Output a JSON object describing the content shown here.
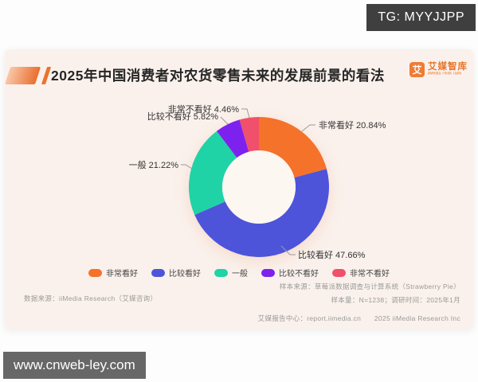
{
  "overlays": {
    "tg_badge": "TG: MYYJJPP",
    "watermark": "www.cnweb-ley.com"
  },
  "header": {
    "title": "2025年中国消费者对农货零售未来的发展前景的看法",
    "logo": {
      "icon_char": "艾",
      "name": "艾媒智库",
      "subtitle": "iiMedia Think Tank"
    }
  },
  "chart_data": {
    "type": "pie",
    "donut": true,
    "title": "2025年中国消费者对农货零售未来的发展前景的看法",
    "categories": [
      "非常看好",
      "比较看好",
      "一般",
      "比较不看好",
      "非常不看好"
    ],
    "values": [
      20.84,
      47.66,
      21.22,
      5.82,
      4.46
    ],
    "unit": "%",
    "colors": [
      "#f5722b",
      "#4d54da",
      "#1fd3a6",
      "#7d22ee",
      "#f0506b"
    ],
    "start_angle_deg": 0,
    "direction": "clockwise",
    "legend_position": "bottom"
  },
  "footnotes": {
    "data_source": "数据来源：iiMedia Research（艾媒咨询）",
    "sample_source": "样本来源：草莓派数据调查与计算系统（Strawberry Pie）",
    "sample_size": "样本量：N=1238；调研时间：2025年1月",
    "report_center": "艾媒报告中心：report.iimedia.cn",
    "copyright": "2025 iiMedia Research Inc"
  }
}
